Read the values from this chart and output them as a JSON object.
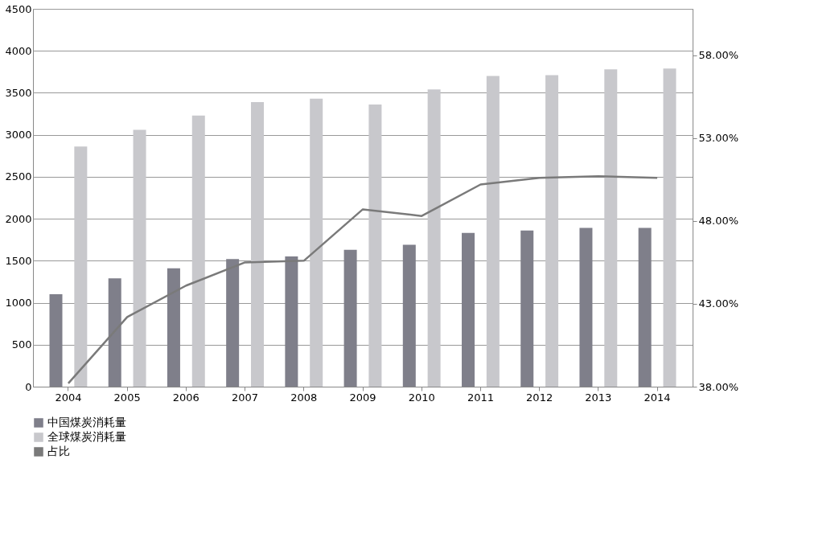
{
  "chart_data": {
    "type": "bar",
    "categories": [
      "2004",
      "2005",
      "2006",
      "2007",
      "2008",
      "2009",
      "2010",
      "2011",
      "2012",
      "2013",
      "2014"
    ],
    "series": [
      {
        "name": "中国煤炭消耗量",
        "color": "#7f7f8a",
        "values": [
          1100,
          1290,
          1410,
          1520,
          1550,
          1630,
          1690,
          1830,
          1860,
          1890,
          1890
        ]
      },
      {
        "name": "全球煤炭消耗量",
        "color": "#c8c8cc",
        "values": [
          2860,
          3060,
          3230,
          3390,
          3430,
          3360,
          3540,
          3700,
          3710,
          3780,
          3790
        ]
      },
      {
        "name": "占比",
        "type": "line",
        "axis": "y2",
        "color": "#7a7a7a",
        "values": [
          38.2,
          42.2,
          44.1,
          45.5,
          45.6,
          48.7,
          48.3,
          50.2,
          50.6,
          50.7,
          50.6
        ]
      }
    ],
    "ylim": [
      0,
      4500
    ],
    "yticks": [
      0,
      500,
      1000,
      1500,
      2000,
      2500,
      3000,
      3500,
      4000,
      4500
    ],
    "y2lim": [
      38,
      60.8
    ],
    "y2ticks": [
      {
        "value": 38,
        "label": "38.00%"
      },
      {
        "value": 43,
        "label": "43.00%"
      },
      {
        "value": 48,
        "label": "48.00%"
      },
      {
        "value": 53,
        "label": "53.00%"
      },
      {
        "value": 58,
        "label": "58.00%"
      }
    ],
    "grid": "y",
    "legend": "bottom",
    "marker": "none",
    "line_style": "solid"
  }
}
